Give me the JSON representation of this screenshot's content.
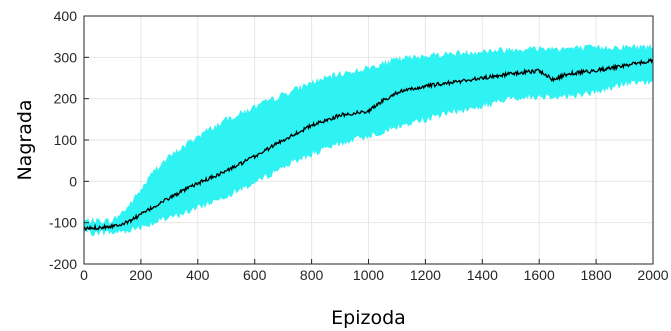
{
  "chart_data": {
    "type": "area",
    "title": "",
    "xlabel": "Epizoda",
    "ylabel": "Nagrada",
    "xlim": [
      0,
      2000
    ],
    "ylim": [
      -200,
      400
    ],
    "x_ticks": [
      0,
      200,
      400,
      600,
      800,
      1000,
      1200,
      1400,
      1600,
      1800,
      2000
    ],
    "y_ticks": [
      -200,
      -100,
      0,
      100,
      200,
      300,
      400
    ],
    "x_tick_labels": [
      "0",
      "200",
      "400",
      "600",
      "800",
      "1000",
      "1200",
      "1400",
      "1600",
      "1800",
      "2000"
    ],
    "y_tick_labels": [
      "-200",
      "-100",
      "0",
      "100",
      "200",
      "300",
      "400"
    ],
    "grid": true,
    "series": [
      {
        "kind": "line",
        "color": "#000000",
        "x": [
          0,
          100,
          150,
          200,
          250,
          300,
          400,
          500,
          600,
          700,
          800,
          900,
          1000,
          1050,
          1100,
          1200,
          1300,
          1400,
          1500,
          1600,
          1650,
          1700,
          1800,
          1900,
          2000
        ],
        "y": [
          -115,
          -108,
          -100,
          -80,
          -60,
          -40,
          -5,
          25,
          60,
          100,
          135,
          160,
          170,
          195,
          215,
          230,
          240,
          250,
          260,
          268,
          245,
          260,
          268,
          280,
          292
        ]
      },
      {
        "kind": "band",
        "color": "#2ff2f2",
        "x": [
          0,
          100,
          150,
          200,
          250,
          300,
          400,
          500,
          600,
          700,
          800,
          900,
          1000,
          1100,
          1200,
          1300,
          1400,
          1500,
          1600,
          1700,
          1800,
          1900,
          2000
        ],
        "upper": [
          -95,
          -95,
          -65,
          -20,
          30,
          60,
          110,
          150,
          180,
          210,
          240,
          260,
          275,
          295,
          305,
          310,
          315,
          320,
          322,
          322,
          324,
          326,
          326
        ],
        "lower": [
          -125,
          -125,
          -120,
          -110,
          -100,
          -90,
          -65,
          -35,
          -5,
          35,
          65,
          90,
          110,
          130,
          150,
          168,
          180,
          200,
          205,
          205,
          215,
          235,
          240
        ]
      }
    ]
  }
}
